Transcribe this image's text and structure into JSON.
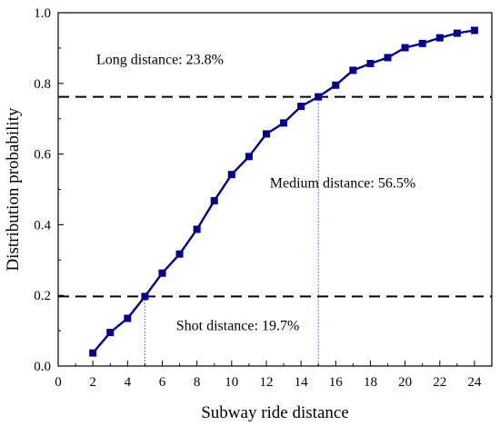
{
  "chart_data": {
    "type": "line",
    "xlabel": "Subway ride distance",
    "ylabel": "Distribution probability",
    "xlim": [
      0,
      25
    ],
    "ylim": [
      0,
      1.0
    ],
    "x_ticks": [
      "0",
      "2",
      "4",
      "6",
      "8",
      "10",
      "12",
      "14",
      "16",
      "18",
      "20",
      "22",
      "24"
    ],
    "y_ticks": [
      "0.0",
      "0.2",
      "0.4",
      "0.6",
      "0.8",
      "1.0"
    ],
    "x_tick_values": [
      0,
      2,
      4,
      6,
      8,
      10,
      12,
      14,
      16,
      18,
      20,
      22,
      24
    ],
    "y_tick_values": [
      0,
      0.2,
      0.4,
      0.6,
      0.8,
      1.0
    ],
    "series": [
      {
        "color": "#00008B",
        "marker": "square",
        "x": [
          2,
          3,
          4,
          5,
          6,
          7,
          8,
          9,
          10,
          11,
          12,
          13,
          14,
          15,
          16,
          17,
          18,
          19,
          20,
          21,
          22,
          23,
          24
        ],
        "y": [
          0.037,
          0.095,
          0.135,
          0.197,
          0.263,
          0.317,
          0.387,
          0.468,
          0.542,
          0.593,
          0.657,
          0.688,
          0.735,
          0.762,
          0.795,
          0.837,
          0.856,
          0.873,
          0.901,
          0.913,
          0.929,
          0.942,
          0.95
        ]
      }
    ],
    "reference_lines": {
      "horizontal": [
        0.197,
        0.762
      ],
      "vertical": [
        {
          "x": 5,
          "y_top": 0.197
        },
        {
          "x": 15,
          "y_top": 0.762
        }
      ]
    },
    "annotations": {
      "long": {
        "text": "Long distance: 23.8%",
        "x": 2.2,
        "y": 0.855
      },
      "medium": {
        "text": "Medium distance: 56.5%",
        "x": 12.2,
        "y": 0.505
      },
      "short": {
        "text": "Shot distance: 19.7%",
        "x": 6.8,
        "y": 0.102
      }
    }
  }
}
